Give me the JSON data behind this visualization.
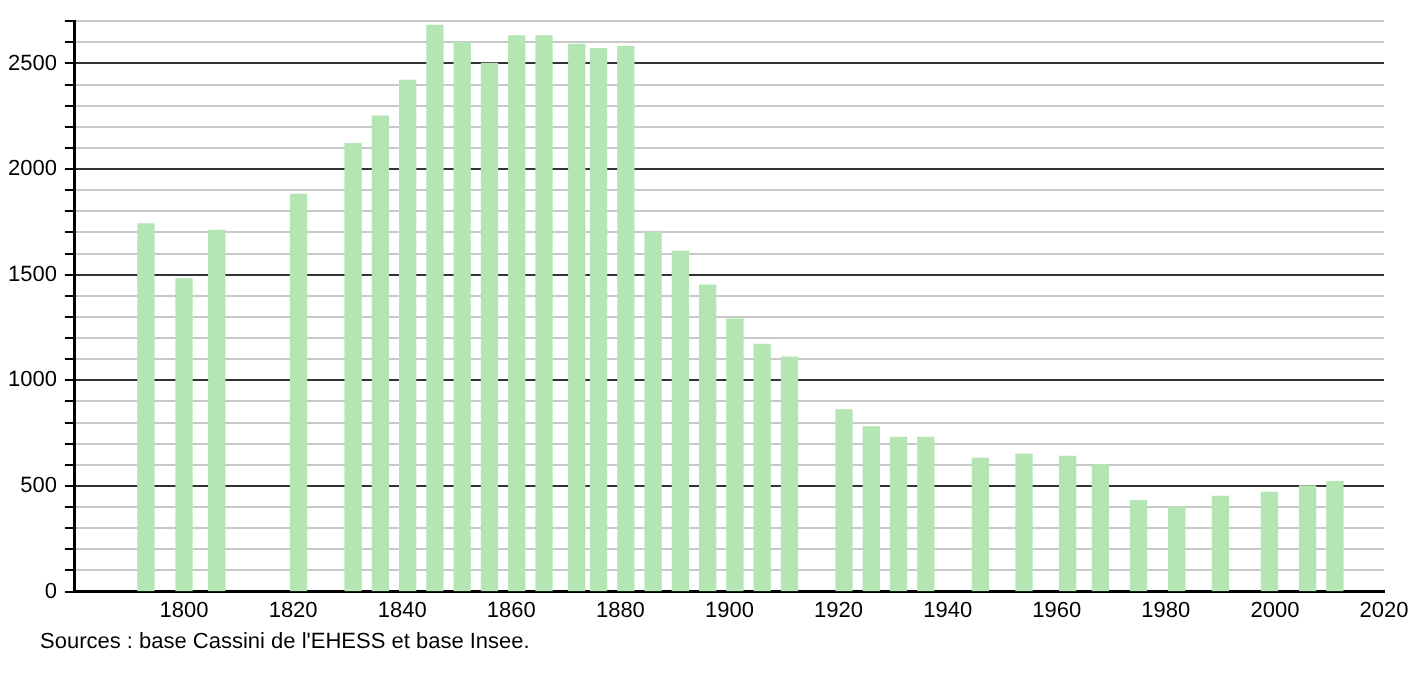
{
  "chart_data": {
    "type": "bar",
    "x": [
      1793,
      1800,
      1806,
      1821,
      1831,
      1836,
      1841,
      1846,
      1851,
      1856,
      1861,
      1866,
      1872,
      1876,
      1881,
      1886,
      1891,
      1896,
      1901,
      1906,
      1911,
      1921,
      1926,
      1931,
      1936,
      1946,
      1954,
      1962,
      1968,
      1975,
      1982,
      1990,
      1999,
      2006,
      2011
    ],
    "values": [
      1740,
      1480,
      1710,
      1880,
      2120,
      2250,
      2420,
      2680,
      2600,
      2500,
      2630,
      2630,
      2590,
      2570,
      2580,
      1700,
      1610,
      1450,
      1290,
      1170,
      1110,
      860,
      780,
      730,
      730,
      630,
      650,
      640,
      600,
      430,
      400,
      450,
      470,
      500,
      520
    ],
    "color": "#b3e6b3",
    "xlim": [
      1780,
      2020
    ],
    "xticks": [
      1800,
      1820,
      1840,
      1860,
      1880,
      1900,
      1920,
      1940,
      1960,
      1980,
      2000,
      2020
    ],
    "ylim": [
      0,
      2700
    ],
    "yticks": [
      0,
      {
        "value": 100,
        "label": null
      },
      {
        "value": 200,
        "label": null
      },
      {
        "value": 300,
        "label": null
      },
      {
        "value": 400,
        "label": null
      },
      500,
      {
        "value": 600,
        "label": null
      },
      {
        "value": 700,
        "label": null
      },
      {
        "value": 800,
        "label": null
      },
      {
        "value": 900,
        "label": null
      },
      1000,
      {
        "value": 1100,
        "label": null
      },
      {
        "value": 1200,
        "label": null
      },
      {
        "value": 1300,
        "label": null
      },
      {
        "value": 1400,
        "label": null
      },
      1500,
      {
        "value": 1600,
        "label": null
      },
      {
        "value": 1700,
        "label": null
      },
      {
        "value": 1800,
        "label": null
      },
      {
        "value": 1900,
        "label": null
      },
      2000,
      {
        "value": 2100,
        "label": null
      },
      {
        "value": 2200,
        "label": null
      },
      {
        "value": 2300,
        "label": null
      },
      {
        "value": 2400,
        "label": null
      },
      2500,
      {
        "value": 2600,
        "label": null
      },
      {
        "value": 2700,
        "label": null
      }
    ],
    "grid": "y",
    "annotations": [
      "Sources : base Cassini de l'EHESS et base Insee."
    ]
  }
}
